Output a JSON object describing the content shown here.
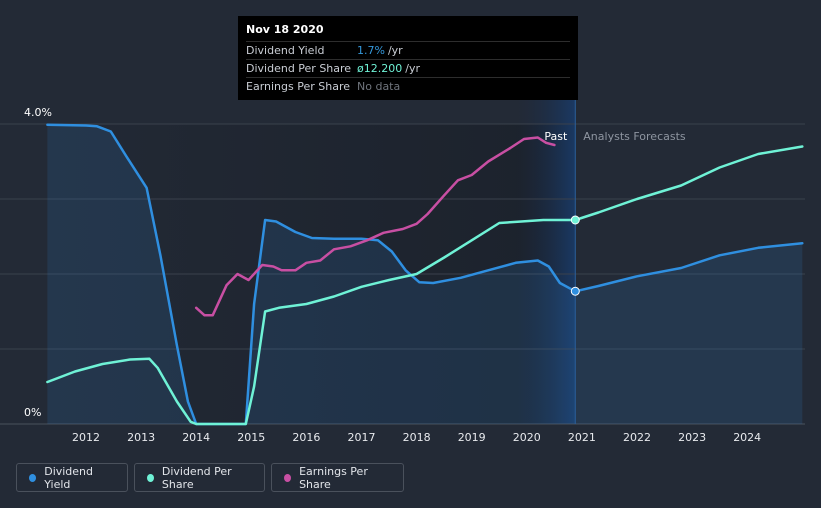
{
  "tooltip": {
    "date": "Nov 18 2020",
    "rows": [
      {
        "label": "Dividend Yield",
        "value": "1.7%",
        "unit": "/yr",
        "color": "#3498db"
      },
      {
        "label": "Dividend Per Share",
        "value": "ø12.200",
        "unit": "/yr",
        "color": "#6ff2d6"
      },
      {
        "label": "Earnings Per Share",
        "value": "No data",
        "unit": "",
        "color": "#6f747c"
      }
    ]
  },
  "regions": {
    "past": "Past",
    "forecast": "Analysts Forecasts"
  },
  "legend": [
    {
      "label": "Dividend Yield",
      "color": "#2f8fe0"
    },
    {
      "label": "Dividend Per Share",
      "color": "#6ff2d6"
    },
    {
      "label": "Earnings Per Share",
      "color": "#c84fa3"
    }
  ],
  "chart_data": {
    "type": "line",
    "title": "",
    "xlabel": "",
    "ylabel": "",
    "x_ticks": [
      "2012",
      "2013",
      "2014",
      "2015",
      "2016",
      "2017",
      "2018",
      "2019",
      "2020",
      "2021",
      "2022",
      "2023",
      "2024"
    ],
    "y_ticks": [
      "4.0%",
      "0%"
    ],
    "xlim": [
      2011.3,
      2025.0
    ],
    "ylim": [
      0,
      4.0
    ],
    "marker_date": 2020.88,
    "legend_position": "bottom-left",
    "grid": true,
    "series": [
      {
        "name": "Dividend Yield",
        "color": "#2f8fe0",
        "fill": true,
        "points": [
          [
            2011.3,
            3.99
          ],
          [
            2012.0,
            3.98
          ],
          [
            2012.2,
            3.97
          ],
          [
            2012.45,
            3.9
          ],
          [
            2012.75,
            3.55
          ],
          [
            2013.1,
            3.15
          ],
          [
            2013.35,
            2.25
          ],
          [
            2013.65,
            1.05
          ],
          [
            2013.85,
            0.3
          ],
          [
            2014.0,
            0.0
          ],
          [
            2014.9,
            0.0
          ],
          [
            2015.05,
            1.6
          ],
          [
            2015.25,
            2.72
          ],
          [
            2015.45,
            2.7
          ],
          [
            2015.8,
            2.56
          ],
          [
            2016.1,
            2.48
          ],
          [
            2016.5,
            2.47
          ],
          [
            2017.0,
            2.47
          ],
          [
            2017.3,
            2.45
          ],
          [
            2017.55,
            2.3
          ],
          [
            2017.8,
            2.05
          ],
          [
            2018.05,
            1.89
          ],
          [
            2018.3,
            1.88
          ],
          [
            2018.8,
            1.95
          ],
          [
            2019.3,
            2.05
          ],
          [
            2019.8,
            2.15
          ],
          [
            2020.2,
            2.18
          ],
          [
            2020.4,
            2.1
          ],
          [
            2020.6,
            1.88
          ],
          [
            2020.88,
            1.77
          ],
          [
            2021.3,
            1.84
          ],
          [
            2022.0,
            1.97
          ],
          [
            2022.8,
            2.08
          ],
          [
            2023.5,
            2.25
          ],
          [
            2024.2,
            2.35
          ],
          [
            2025.0,
            2.41
          ]
        ]
      },
      {
        "name": "Dividend Per Share",
        "color": "#6ff2d6",
        "fill": false,
        "points": [
          [
            2011.3,
            0.56
          ],
          [
            2011.8,
            0.7
          ],
          [
            2012.3,
            0.8
          ],
          [
            2012.8,
            0.86
          ],
          [
            2013.15,
            0.87
          ],
          [
            2013.3,
            0.75
          ],
          [
            2013.65,
            0.3
          ],
          [
            2013.9,
            0.03
          ],
          [
            2014.0,
            0.0
          ],
          [
            2014.9,
            0.0
          ],
          [
            2015.05,
            0.5
          ],
          [
            2015.25,
            1.5
          ],
          [
            2015.5,
            1.55
          ],
          [
            2016.0,
            1.6
          ],
          [
            2016.5,
            1.7
          ],
          [
            2017.0,
            1.83
          ],
          [
            2017.5,
            1.92
          ],
          [
            2018.0,
            2.0
          ],
          [
            2018.5,
            2.22
          ],
          [
            2019.0,
            2.45
          ],
          [
            2019.5,
            2.68
          ],
          [
            2019.9,
            2.7
          ],
          [
            2020.3,
            2.72
          ],
          [
            2020.88,
            2.72
          ],
          [
            2021.3,
            2.82
          ],
          [
            2022.0,
            3.0
          ],
          [
            2022.8,
            3.18
          ],
          [
            2023.5,
            3.42
          ],
          [
            2024.2,
            3.6
          ],
          [
            2025.0,
            3.7
          ]
        ]
      },
      {
        "name": "Earnings Per Share",
        "color": "#c84fa3",
        "fill": false,
        "points": [
          [
            2014.0,
            1.55
          ],
          [
            2014.15,
            1.45
          ],
          [
            2014.3,
            1.45
          ],
          [
            2014.55,
            1.85
          ],
          [
            2014.75,
            2.0
          ],
          [
            2014.95,
            1.92
          ],
          [
            2015.2,
            2.12
          ],
          [
            2015.4,
            2.1
          ],
          [
            2015.55,
            2.05
          ],
          [
            2015.8,
            2.05
          ],
          [
            2016.0,
            2.15
          ],
          [
            2016.25,
            2.18
          ],
          [
            2016.5,
            2.33
          ],
          [
            2016.8,
            2.37
          ],
          [
            2017.1,
            2.45
          ],
          [
            2017.4,
            2.55
          ],
          [
            2017.75,
            2.6
          ],
          [
            2018.0,
            2.67
          ],
          [
            2018.2,
            2.8
          ],
          [
            2018.5,
            3.05
          ],
          [
            2018.75,
            3.25
          ],
          [
            2019.0,
            3.32
          ],
          [
            2019.3,
            3.5
          ],
          [
            2019.7,
            3.68
          ],
          [
            2019.95,
            3.8
          ],
          [
            2020.2,
            3.82
          ],
          [
            2020.35,
            3.75
          ],
          [
            2020.5,
            3.72
          ]
        ]
      }
    ]
  }
}
